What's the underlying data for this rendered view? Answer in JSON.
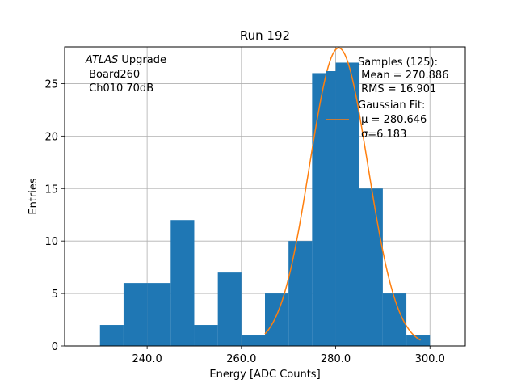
{
  "chart_data": {
    "type": "bar",
    "title": "Run 192",
    "xlabel": "Energy [ADC Counts]",
    "ylabel": "Entries",
    "xlim": [
      222.5,
      307.5
    ],
    "ylim": [
      0,
      28.5
    ],
    "grid": true,
    "xticks": [
      240,
      260,
      280,
      300
    ],
    "xtick_labels": [
      "240.0",
      "260.0",
      "280.0",
      "300.0"
    ],
    "yticks": [
      0,
      5,
      10,
      15,
      20,
      25
    ],
    "ytick_labels": [
      "0",
      "5",
      "10",
      "15",
      "20",
      "25"
    ],
    "bin_width": 5,
    "bin_starts": [
      230,
      235,
      240,
      245,
      250,
      255,
      260,
      265,
      270,
      275,
      280,
      285,
      290,
      295
    ],
    "values": [
      2,
      6,
      6,
      12,
      2,
      7,
      1,
      5,
      10,
      26,
      27,
      15,
      5,
      1
    ],
    "bar_color": "#1f77b4",
    "fit": {
      "type": "gaussian",
      "mu": 280.646,
      "sigma": 6.183,
      "peak": 28.4,
      "color": "#ff7f0e"
    },
    "annotation": {
      "experiment": "ATLAS",
      "suffix": " Upgrade",
      "line2": " Board260",
      "line3": " Ch010 70dB"
    },
    "legend": {
      "placement": "top-right",
      "samples_title": "Samples (125):",
      "samples_mean": " Mean = 270.886",
      "samples_rms": " RMS = 16.901",
      "fit_title": "Gaussian Fit:",
      "fit_mu": " μ = 280.646",
      "fit_sigma": "σ=6.183"
    }
  }
}
